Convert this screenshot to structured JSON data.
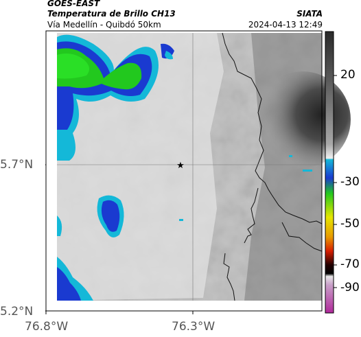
{
  "header": {
    "title": "GOES-EAST",
    "subtitle": "Temperatura de Brillo CH13",
    "org": "SIATA",
    "area": "Vía Medellín - Quibdó 50km",
    "datetime": "2024-04-13 12:49"
  },
  "axes": {
    "lat_labels": [
      "5.7°N",
      "5.2°N"
    ],
    "lon_labels": [
      "76.8°W",
      "76.3°W"
    ],
    "lat_range": [
      5.2,
      6.05
    ],
    "lon_range": [
      -76.8,
      -76.3
    ]
  },
  "colorbar": {
    "labels": [
      "20",
      "-30",
      "-50",
      "-70",
      "-90"
    ],
    "colors": {
      "warm_dark": "#2a2a2a",
      "mid_gray": "#9a9a9a",
      "light": "#f4f4f4",
      "cyan": "#14b8d8",
      "blue": "#1a3ad0",
      "green": "#22c81e",
      "yellow": "#e6e600",
      "red": "#d81e00",
      "black": "#000000",
      "magenta": "#b0289a"
    }
  },
  "marker": {
    "icon": "star-icon"
  }
}
